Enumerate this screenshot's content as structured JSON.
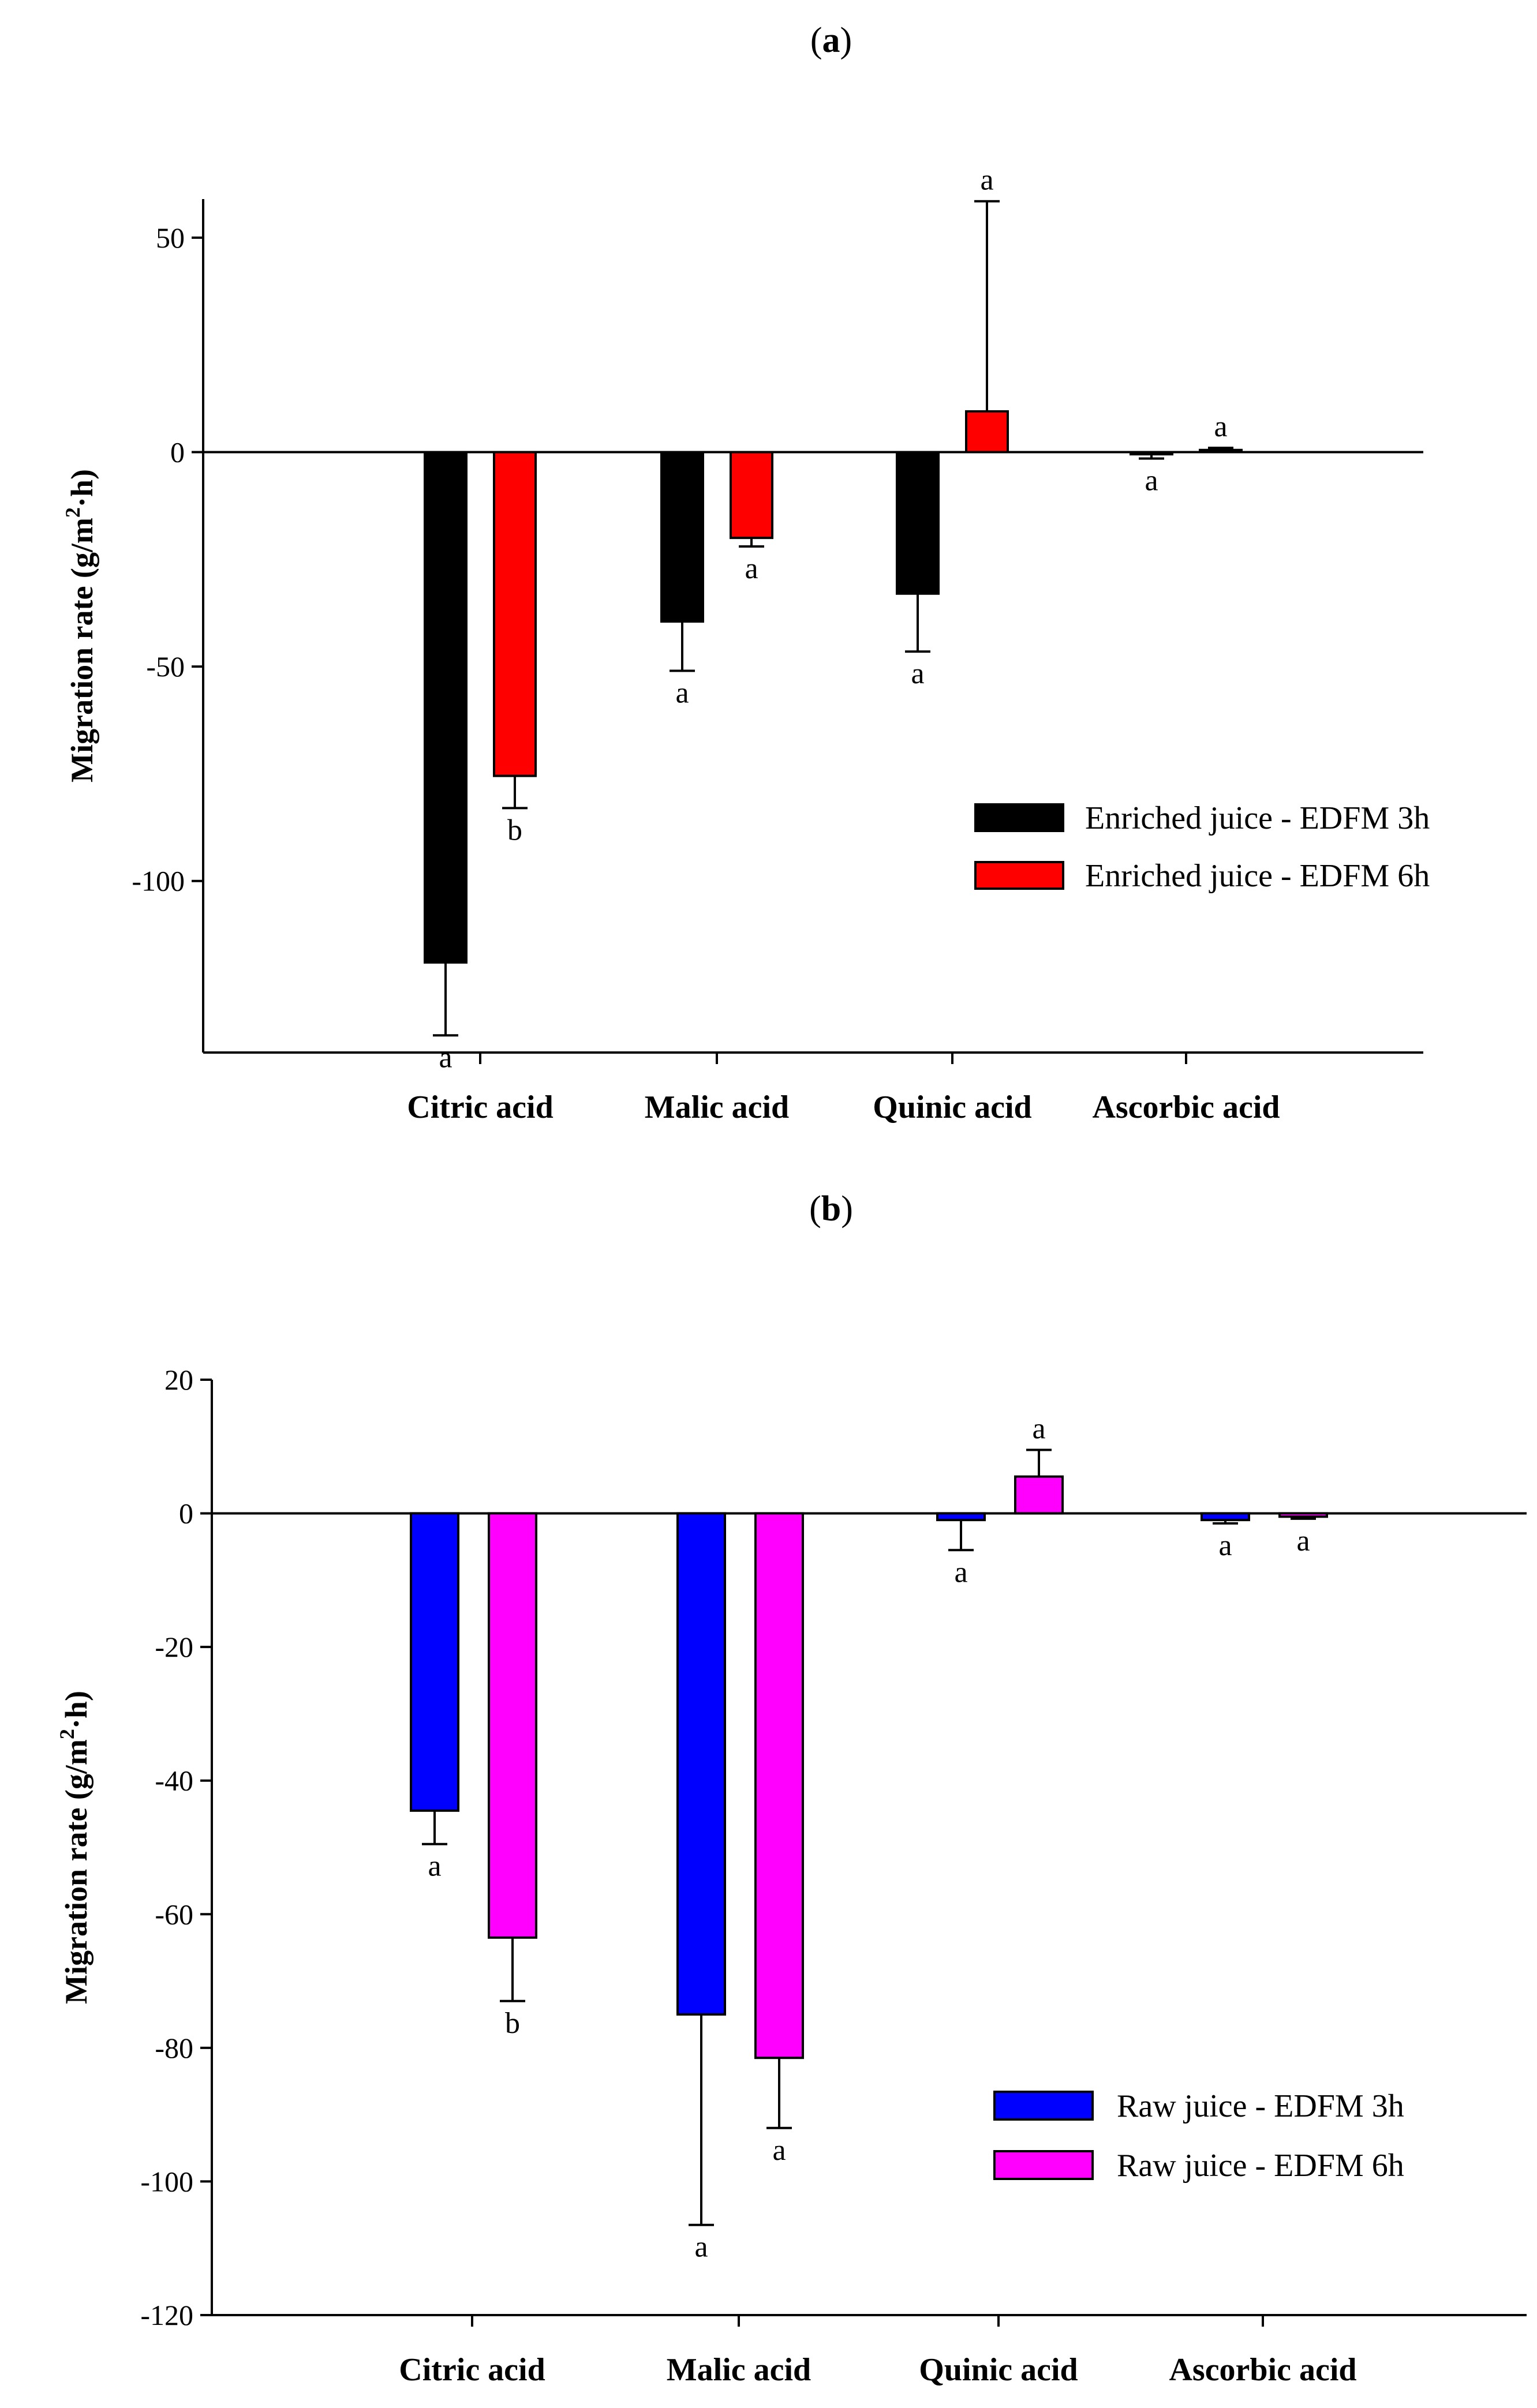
{
  "chart_data": [
    {
      "panel": "a",
      "type": "bar",
      "ylabel": "Migration rate (g/m2·h)",
      "ylabel_parts": {
        "main": "Migration rate (g/m",
        "sup": "2",
        "tail": "·h)"
      },
      "ylim": [
        -140,
        59
      ],
      "yticks": [
        50,
        0,
        -50,
        -100
      ],
      "categories": [
        "Citric acid",
        "Malic acid",
        "Quinic acid",
        "Ascorbic acid"
      ],
      "series": [
        {
          "name": "Enriched juice - EDFM 3h",
          "color": "#000000",
          "values": [
            -119,
            -39.5,
            -33,
            -0.5
          ],
          "errors": [
            17,
            11.5,
            13.5,
            1
          ],
          "letters": [
            "a",
            "a",
            "a",
            "a"
          ]
        },
        {
          "name": "Enriched juice - EDFM 6h",
          "color": "#ff0000",
          "values": [
            -75.5,
            -20,
            9.5,
            0.5
          ],
          "errors": [
            7.5,
            2,
            49,
            0.5
          ],
          "letters": [
            "b",
            "a",
            "a",
            "a"
          ]
        }
      ],
      "legend_position": "right"
    },
    {
      "panel": "b",
      "type": "bar",
      "ylabel": "Migration rate (g/m2·h)",
      "ylabel_parts": {
        "main": "Migration rate (g/m",
        "sup": "2",
        "tail": "·h)"
      },
      "ylim": [
        -120,
        20
      ],
      "yticks": [
        20,
        0,
        -20,
        -40,
        -60,
        -80,
        -100,
        -120
      ],
      "categories": [
        "Citric acid",
        "Malic acid",
        "Quinic acid",
        "Ascorbic acid"
      ],
      "series": [
        {
          "name": "Raw juice - EDFM 3h",
          "color": "#0000ff",
          "values": [
            -44.5,
            -75,
            -1,
            -1
          ],
          "errors": [
            5,
            31.5,
            4.5,
            0.5
          ],
          "letters": [
            "a",
            "a",
            "a",
            "a"
          ]
        },
        {
          "name": "Raw juice - EDFM 6h",
          "color": "#ff00ff",
          "values": [
            -63.5,
            -81.5,
            5.5,
            -0.5
          ],
          "errors": [
            9.5,
            10.5,
            4,
            0.3
          ],
          "letters": [
            "b",
            "a",
            "a",
            "a"
          ]
        }
      ],
      "legend_position": "right"
    }
  ]
}
